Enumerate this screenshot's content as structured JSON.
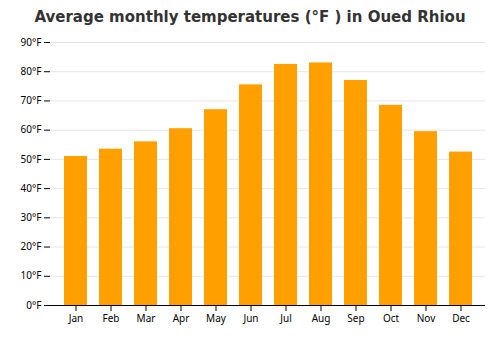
{
  "chart_data": {
    "type": "bar",
    "title": "Average monthly temperatures (°F ) in Oued Rhiou",
    "categories": [
      "Jan",
      "Feb",
      "Mar",
      "Apr",
      "May",
      "Jun",
      "Jul",
      "Aug",
      "Sep",
      "Oct",
      "Nov",
      "Dec"
    ],
    "values": [
      51,
      53.5,
      56,
      60.5,
      67,
      75.5,
      82.5,
      83,
      77,
      68.5,
      59.5,
      52.5
    ],
    "color": "#FFA000",
    "ylim": [
      0,
      90
    ],
    "yticks": [
      {
        "value": 0,
        "label": "0°F"
      },
      {
        "value": 10,
        "label": "10°F"
      },
      {
        "value": 20,
        "label": "20°F"
      },
      {
        "value": 30,
        "label": "30°F"
      },
      {
        "value": 40,
        "label": "40°F"
      },
      {
        "value": 50,
        "label": "50°F"
      },
      {
        "value": 60,
        "label": "60°F"
      },
      {
        "value": 70,
        "label": "70°F"
      },
      {
        "value": 80,
        "label": "80°F"
      },
      {
        "value": 90,
        "label": "90°F"
      }
    ],
    "grid": true
  }
}
